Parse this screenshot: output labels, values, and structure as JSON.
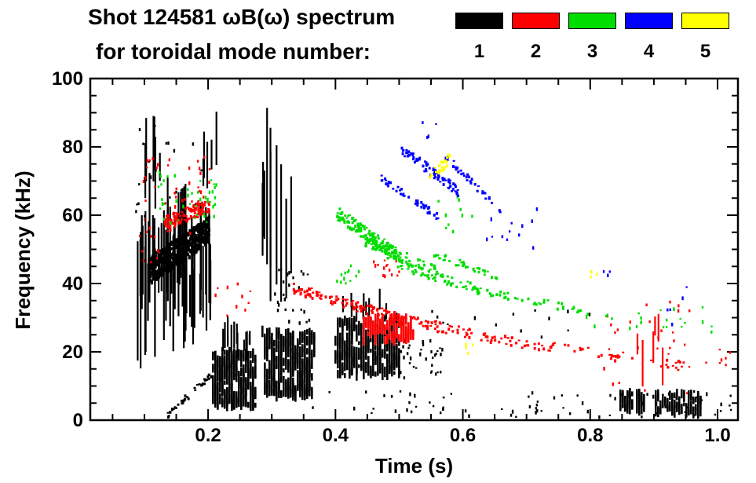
{
  "title": {
    "line1": "Shot 124581 ωB(ω) spectrum",
    "line2": "for toroidal mode number:"
  },
  "legend": {
    "entries": [
      {
        "label": "1",
        "color": "#000000"
      },
      {
        "label": "2",
        "color": "#ff0000"
      },
      {
        "label": "3",
        "color": "#00dd00"
      },
      {
        "label": "4",
        "color": "#0000ff"
      },
      {
        "label": "5",
        "color": "#ffff00"
      }
    ]
  },
  "chart_data": {
    "type": "scatter",
    "title": "Shot 124581 ωB(ω) spectrum for toroidal mode number: 1 2 3 4 5",
    "xlabel": "Time (s)",
    "ylabel": "Frequency (kHz)",
    "xlim": [
      0.015,
      1.032
    ],
    "ylim": [
      0,
      100
    ],
    "xticks": {
      "major": [
        0.2,
        0.4,
        0.6,
        0.8,
        1.0
      ],
      "labels": [
        "0.2",
        "0.4",
        "0.6",
        "0.8",
        "1.0"
      ],
      "minor_step": 0.05
    },
    "yticks": {
      "major": [
        0,
        20,
        40,
        60,
        80,
        100
      ],
      "labels": [
        "0",
        "20",
        "40",
        "60",
        "80",
        "100"
      ],
      "minor_step": 5
    },
    "series": [
      {
        "name": "mode 1",
        "mode": 1,
        "color": "#000000",
        "clusters": [
          {
            "type": "vspikes",
            "t": [
              0.085,
              0.205
            ],
            "fc": [
              33,
              58
            ],
            "len": [
              8,
              40
            ],
            "n": 60,
            "seed": 11
          },
          {
            "type": "vspikes",
            "t": [
              0.09,
              0.125
            ],
            "fc": [
              72,
              86
            ],
            "len": [
              8,
              22
            ],
            "n": 6,
            "seed": 12
          },
          {
            "type": "vspikes",
            "t": [
              0.19,
              0.215
            ],
            "fc": [
              72,
              88
            ],
            "len": [
              8,
              18
            ],
            "n": 5,
            "seed": 13
          },
          {
            "type": "band",
            "p0": [
              0.105,
              44
            ],
            "p1": [
              0.2,
              56
            ],
            "thick": 8,
            "n": 500,
            "seed": 14,
            "w": 3,
            "h": 3
          },
          {
            "type": "blob",
            "t": [
              0.205,
              0.272
            ],
            "f": [
              4,
              20
            ],
            "n": 340,
            "seed": 15
          },
          {
            "type": "vspikes",
            "t": [
              0.205,
              0.268
            ],
            "fc": [
              21,
              27
            ],
            "len": [
              3,
              9
            ],
            "n": 14,
            "seed": 16
          },
          {
            "type": "blob",
            "t": [
              0.285,
              0.365
            ],
            "f": [
              7,
              26
            ],
            "n": 400,
            "seed": 17
          },
          {
            "type": "vspikes",
            "t": [
              0.287,
              0.335
            ],
            "fc": [
              45,
              70
            ],
            "len": [
              25,
              55
            ],
            "n": 7,
            "seed": 18
          },
          {
            "type": "blob",
            "t": [
              0.4,
              0.5
            ],
            "f": [
              13,
              30
            ],
            "n": 380,
            "seed": 19
          },
          {
            "type": "scatter",
            "t": [
              0.36,
              1.03
            ],
            "f": [
              1,
              9
            ],
            "n": 80,
            "seed": 20
          },
          {
            "type": "band",
            "p0": [
              0.135,
              2
            ],
            "p1": [
              0.205,
              14
            ],
            "thick": 2,
            "n": 35,
            "seed": 21,
            "w": 3,
            "h": 2
          },
          {
            "type": "scatter",
            "t": [
              0.085,
              0.2
            ],
            "f": [
              60,
              92
            ],
            "n": 22,
            "seed": 22
          },
          {
            "type": "scatter",
            "t": [
              0.5,
              0.57
            ],
            "f": [
              12,
              24
            ],
            "n": 35,
            "seed": 23
          },
          {
            "type": "blob",
            "t": [
              0.845,
              0.885
            ],
            "f": [
              3,
              8
            ],
            "n": 60,
            "seed": 24
          },
          {
            "type": "blob",
            "t": [
              0.9,
              0.975
            ],
            "f": [
              2,
              8
            ],
            "n": 90,
            "seed": 25
          },
          {
            "type": "scatter",
            "t": [
              0.55,
              0.8
            ],
            "f": [
              24,
              34
            ],
            "n": 14,
            "seed": 26
          },
          {
            "type": "vspikes",
            "t": [
              0.41,
              0.49
            ],
            "fc": [
              31,
              36
            ],
            "len": [
              3,
              8
            ],
            "n": 10,
            "seed": 27
          },
          {
            "type": "scatter",
            "t": [
              0.3,
              0.36
            ],
            "f": [
              28,
              45
            ],
            "n": 25,
            "seed": 28
          },
          {
            "type": "vspikes",
            "t": [
              0.28,
              0.3
            ],
            "fc": [
              55,
              80
            ],
            "len": [
              15,
              35
            ],
            "n": 3,
            "seed": 29
          }
        ]
      },
      {
        "name": "mode 2",
        "mode": 2,
        "color": "#ff0000",
        "clusters": [
          {
            "type": "scatter",
            "t": [
              0.095,
              0.205
            ],
            "f": [
              55,
              78
            ],
            "n": 45,
            "seed": 31
          },
          {
            "type": "band",
            "p0": [
              0.13,
              58
            ],
            "p1": [
              0.2,
              63
            ],
            "thick": 4,
            "n": 110,
            "seed": 32,
            "w": 3,
            "h": 2
          },
          {
            "type": "band",
            "p0": [
              0.33,
              39
            ],
            "p1": [
              0.5,
              30
            ],
            "thick": 3,
            "n": 110,
            "seed": 33,
            "w": 3,
            "h": 2
          },
          {
            "type": "band",
            "p0": [
              0.5,
              30
            ],
            "p1": [
              0.68,
              23
            ],
            "thick": 3,
            "n": 80,
            "seed": 34,
            "w": 3,
            "h": 2
          },
          {
            "type": "band",
            "p0": [
              0.68,
              23
            ],
            "p1": [
              0.95,
              16
            ],
            "thick": 3,
            "n": 55,
            "seed": 35,
            "w": 3,
            "h": 2
          },
          {
            "type": "blob",
            "t": [
              0.44,
              0.52
            ],
            "f": [
              23,
              30
            ],
            "n": 120,
            "seed": 36
          },
          {
            "type": "scatter",
            "t": [
              0.45,
              0.5
            ],
            "f": [
              42,
              47
            ],
            "n": 14,
            "seed": 37
          },
          {
            "type": "vspikes",
            "t": [
              0.85,
              0.92
            ],
            "fc": [
              14,
              30
            ],
            "len": [
              5,
              14
            ],
            "n": 6,
            "seed": 38
          },
          {
            "type": "scatter",
            "t": [
              0.82,
              0.97
            ],
            "f": [
              8,
              35
            ],
            "n": 28,
            "seed": 39
          },
          {
            "type": "scatter",
            "t": [
              0.97,
              1.02
            ],
            "f": [
              16,
              22
            ],
            "n": 7,
            "seed": 40
          },
          {
            "type": "scatter",
            "t": [
              0.09,
              0.125
            ],
            "f": [
              44,
              56
            ],
            "n": 10,
            "seed": 41
          },
          {
            "type": "scatter",
            "t": [
              0.21,
              0.28
            ],
            "f": [
              30,
              45
            ],
            "n": 10,
            "seed": 42
          }
        ]
      },
      {
        "name": "mode 3",
        "mode": 3,
        "color": "#00dd00",
        "clusters": [
          {
            "type": "scatter",
            "t": [
              0.115,
              0.21
            ],
            "f": [
              58,
              74
            ],
            "n": 35,
            "seed": 51
          },
          {
            "type": "band",
            "p0": [
              0.4,
              61
            ],
            "p1": [
              0.5,
              48
            ],
            "thick": 4,
            "n": 140,
            "seed": 52,
            "w": 3,
            "h": 2
          },
          {
            "type": "band",
            "p0": [
              0.44,
              53
            ],
            "p1": [
              0.56,
              44
            ],
            "thick": 3,
            "n": 80,
            "seed": 53,
            "w": 3,
            "h": 2
          },
          {
            "type": "band",
            "p0": [
              0.48,
              47
            ],
            "p1": [
              0.63,
              38
            ],
            "thick": 3,
            "n": 70,
            "seed": 54,
            "w": 3,
            "h": 2
          },
          {
            "type": "band",
            "p0": [
              0.55,
              49
            ],
            "p1": [
              0.66,
              42
            ],
            "thick": 2,
            "n": 35,
            "seed": 55,
            "w": 3,
            "h": 2
          },
          {
            "type": "band",
            "p0": [
              0.63,
              38
            ],
            "p1": [
              0.8,
              32
            ],
            "thick": 2,
            "n": 35,
            "seed": 56,
            "w": 3,
            "h": 2
          },
          {
            "type": "scatter",
            "t": [
              0.78,
              1.0
            ],
            "f": [
              26,
              34
            ],
            "n": 22,
            "seed": 57
          },
          {
            "type": "scatter",
            "t": [
              0.56,
              0.63
            ],
            "f": [
              55,
              66
            ],
            "n": 10,
            "seed": 58
          },
          {
            "type": "scatter",
            "t": [
              0.4,
              0.445
            ],
            "f": [
              40,
              46
            ],
            "n": 12,
            "seed": 59
          },
          {
            "type": "scatter",
            "t": [
              0.19,
              0.215
            ],
            "f": [
              63,
              70
            ],
            "n": 8,
            "seed": 60
          }
        ]
      },
      {
        "name": "mode 4",
        "mode": 4,
        "color": "#0000ff",
        "clusters": [
          {
            "type": "band",
            "p0": [
              0.5,
              80
            ],
            "p1": [
              0.6,
              66
            ],
            "thick": 3,
            "n": 80,
            "seed": 71,
            "w": 3,
            "h": 2
          },
          {
            "type": "band",
            "p0": [
              0.47,
              71
            ],
            "p1": [
              0.56,
              60
            ],
            "thick": 2,
            "n": 45,
            "seed": 72,
            "w": 3,
            "h": 2
          },
          {
            "type": "band",
            "p0": [
              0.565,
              79
            ],
            "p1": [
              0.665,
              60
            ],
            "thick": 2,
            "n": 35,
            "seed": 73,
            "w": 3,
            "h": 2
          },
          {
            "type": "scatter",
            "t": [
              0.63,
              0.72
            ],
            "f": [
              50,
              63
            ],
            "n": 12,
            "seed": 74
          },
          {
            "type": "scatter",
            "t": [
              0.92,
              0.95
            ],
            "f": [
              28,
              40
            ],
            "n": 5,
            "seed": 75
          },
          {
            "type": "scatter",
            "t": [
              0.815,
              0.84
            ],
            "f": [
              40,
              44
            ],
            "n": 3,
            "seed": 76
          },
          {
            "type": "scatter",
            "t": [
              0.53,
              0.56
            ],
            "f": [
              83,
              88
            ],
            "n": 4,
            "seed": 77
          }
        ]
      },
      {
        "name": "mode 5",
        "mode": 5,
        "color": "#ffff00",
        "clusters": [
          {
            "type": "band",
            "p0": [
              0.545,
              71
            ],
            "p1": [
              0.578,
              77
            ],
            "thick": 3,
            "n": 26,
            "seed": 91,
            "w": 3,
            "h": 2
          },
          {
            "type": "scatter",
            "t": [
              0.595,
              0.615
            ],
            "f": [
              20,
              23
            ],
            "n": 4,
            "seed": 92
          },
          {
            "type": "scatter",
            "t": [
              0.795,
              0.812
            ],
            "f": [
              41,
              44
            ],
            "n": 3,
            "seed": 93
          }
        ]
      }
    ]
  }
}
